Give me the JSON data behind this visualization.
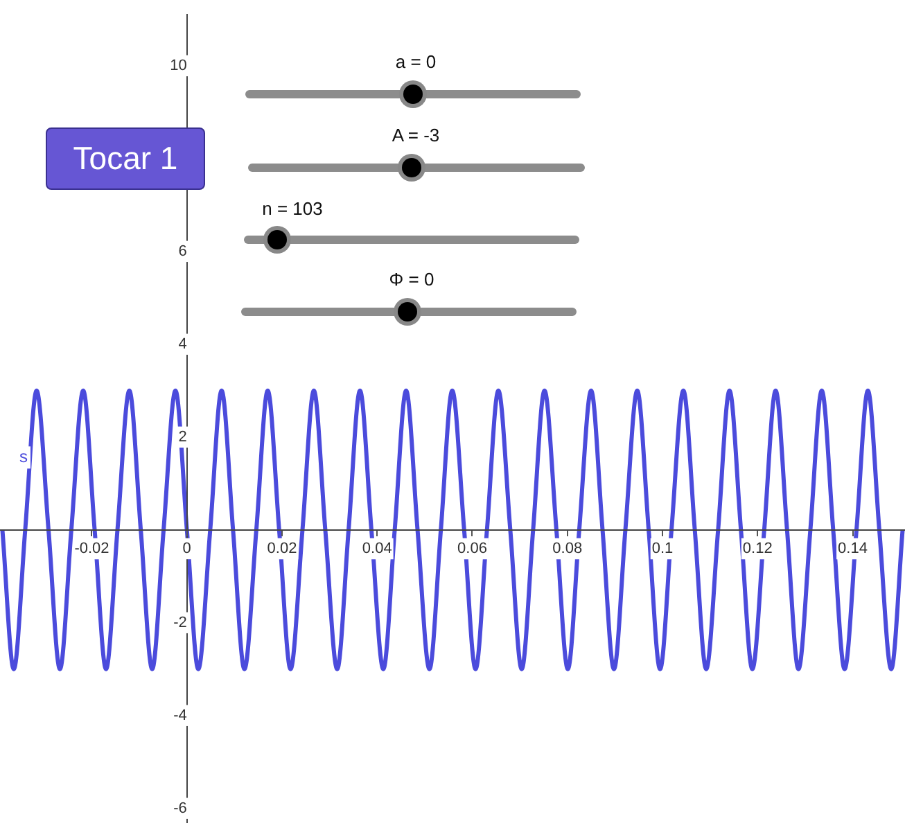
{
  "chart_data": {
    "type": "line",
    "annotations": [
      "a = 0",
      "A = -3",
      "n = 103",
      "Φ = 0",
      "Tocar 1"
    ],
    "x": [
      -0.0388,
      -0.0364,
      -0.034,
      -0.0316,
      -0.0291,
      -0.0267,
      -0.0243,
      -0.0218,
      -0.0194,
      -0.017,
      -0.0146,
      -0.0121,
      -0.0097,
      -0.0073,
      -0.0049,
      -0.0024,
      0,
      0.0024,
      0.0049,
      0.0073,
      0.0097,
      0.0121,
      0.0146,
      0.017,
      0.0194,
      0.0218,
      0.0243,
      0.0267,
      0.0291,
      0.0316,
      0.034,
      0.0364,
      0.0388,
      0.0413,
      0.0437,
      0.0461,
      0.0485,
      0.051,
      0.0534,
      0.0558,
      0.0583,
      0.0607,
      0.0631,
      0.0655,
      0.068,
      0.0704,
      0.0728,
      0.0752,
      0.0777,
      0.0801,
      0.0825,
      0.085,
      0.0874,
      0.0898,
      0.0922,
      0.0947,
      0.0971,
      0.0995,
      0.1019,
      0.1044,
      0.1068,
      0.1092,
      0.1117,
      0.1141,
      0.1165,
      0.1189,
      0.1214,
      0.1238,
      0.1262,
      0.1286,
      0.1311,
      0.1335,
      0.1359,
      0.1383,
      0.1408,
      0.1432,
      0.1456,
      0.1481,
      0.1505
    ],
    "series": [
      {
        "name": "s",
        "color": "#4b4bdc",
        "values": [
          0,
          -3,
          0,
          3,
          0,
          -3,
          0,
          3,
          0,
          -3,
          0,
          3,
          0,
          -3,
          0,
          3,
          0,
          -3,
          0,
          3,
          0,
          -3,
          0,
          3,
          0,
          -3,
          0,
          3,
          0,
          -3,
          0,
          3,
          0,
          -3,
          0,
          3,
          0,
          -3,
          0,
          3,
          0,
          -3,
          0,
          3,
          0,
          -3,
          0,
          3,
          0,
          -3,
          0,
          3,
          0,
          -3,
          0,
          3,
          0,
          -3,
          0,
          3,
          0,
          -3,
          0,
          3,
          0,
          -3,
          0,
          3,
          0,
          -3,
          0,
          3,
          0,
          -3,
          0,
          3,
          0,
          -3,
          0
        ]
      }
    ],
    "xlim": [
      -0.0393,
      0.151
    ],
    "xticks": [
      -0.02,
      0,
      0.02,
      0.04,
      0.06,
      0.08,
      0.1,
      0.12,
      0.14
    ],
    "ylim": [
      -6.3,
      11.1
    ],
    "yticks": [
      -6,
      -4,
      -2,
      {
        "value": 0,
        "label": null
      },
      2,
      4,
      6,
      {
        "value": 8,
        "label": null
      },
      10
    ],
    "grid": false,
    "legend": false,
    "marker": "none",
    "line_style": "solid"
  }
}
